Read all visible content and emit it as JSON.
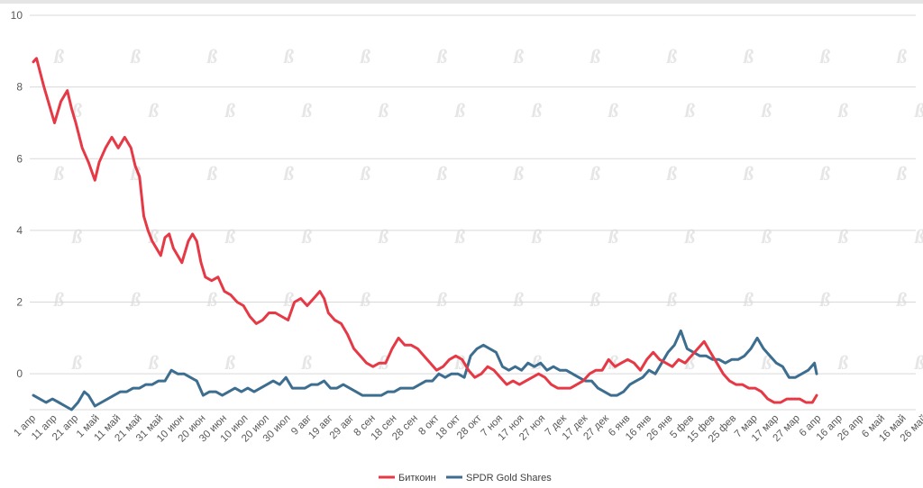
{
  "chart_data": {
    "type": "line",
    "title": "",
    "xlabel": "",
    "ylabel": "",
    "ylim": [
      -1,
      10
    ],
    "yticks": [
      0,
      2,
      4,
      6,
      8,
      10
    ],
    "grid": true,
    "legend_position": "bottom",
    "x_tick_labels": [
      "1 апр",
      "11 апр",
      "21 апр",
      "1 май",
      "11 май",
      "21 май",
      "31 май",
      "10 июн",
      "20 июн",
      "30 июн",
      "10 июл",
      "20 июл",
      "30 июл",
      "9 авг",
      "19 авг",
      "29 авг",
      "8 сен",
      "18 сен",
      "28 сен",
      "8 окт",
      "18 окт",
      "28 окт",
      "7 ноя",
      "17 ноя",
      "27 ноя",
      "7 дек",
      "17 дек",
      "27 дек",
      "6 янв",
      "16 янв",
      "26 янв",
      "5 фев",
      "15 фев",
      "25 фев",
      "7 мар",
      "17 мар",
      "27 мар",
      "6 апр",
      "16 апр",
      "26 апр",
      "6 май",
      "16 май",
      "26 май"
    ],
    "series": [
      {
        "name": "Биткоин",
        "color": "#e63946",
        "points": [
          [
            0,
            8.7
          ],
          [
            0.15,
            8.8
          ],
          [
            0.5,
            8.0
          ],
          [
            0.8,
            7.4
          ],
          [
            1.0,
            7.0
          ],
          [
            1.3,
            7.6
          ],
          [
            1.6,
            7.9
          ],
          [
            1.8,
            7.4
          ],
          [
            2.0,
            7.0
          ],
          [
            2.3,
            6.3
          ],
          [
            2.6,
            5.9
          ],
          [
            2.9,
            5.4
          ],
          [
            3.1,
            5.9
          ],
          [
            3.4,
            6.3
          ],
          [
            3.7,
            6.6
          ],
          [
            4.0,
            6.3
          ],
          [
            4.3,
            6.6
          ],
          [
            4.6,
            6.3
          ],
          [
            4.8,
            5.8
          ],
          [
            5.0,
            5.5
          ],
          [
            5.2,
            4.4
          ],
          [
            5.4,
            4.0
          ],
          [
            5.6,
            3.7
          ],
          [
            5.8,
            3.5
          ],
          [
            6.0,
            3.3
          ],
          [
            6.2,
            3.8
          ],
          [
            6.4,
            3.9
          ],
          [
            6.6,
            3.5
          ],
          [
            6.8,
            3.3
          ],
          [
            7.0,
            3.1
          ],
          [
            7.3,
            3.7
          ],
          [
            7.5,
            3.9
          ],
          [
            7.7,
            3.7
          ],
          [
            7.9,
            3.1
          ],
          [
            8.1,
            2.7
          ],
          [
            8.4,
            2.6
          ],
          [
            8.7,
            2.7
          ],
          [
            9.0,
            2.3
          ],
          [
            9.3,
            2.2
          ],
          [
            9.6,
            2.0
          ],
          [
            9.9,
            1.9
          ],
          [
            10.2,
            1.6
          ],
          [
            10.5,
            1.4
          ],
          [
            10.8,
            1.5
          ],
          [
            11.1,
            1.7
          ],
          [
            11.4,
            1.7
          ],
          [
            11.7,
            1.6
          ],
          [
            12.0,
            1.5
          ],
          [
            12.3,
            2.0
          ],
          [
            12.6,
            2.1
          ],
          [
            12.9,
            1.9
          ],
          [
            13.2,
            2.1
          ],
          [
            13.5,
            2.3
          ],
          [
            13.7,
            2.1
          ],
          [
            13.9,
            1.7
          ],
          [
            14.2,
            1.5
          ],
          [
            14.5,
            1.4
          ],
          [
            14.8,
            1.1
          ],
          [
            15.1,
            0.7
          ],
          [
            15.4,
            0.5
          ],
          [
            15.7,
            0.3
          ],
          [
            16.0,
            0.2
          ],
          [
            16.3,
            0.3
          ],
          [
            16.6,
            0.3
          ],
          [
            16.9,
            0.7
          ],
          [
            17.2,
            1.0
          ],
          [
            17.5,
            0.8
          ],
          [
            17.8,
            0.8
          ],
          [
            18.1,
            0.7
          ],
          [
            18.4,
            0.5
          ],
          [
            18.7,
            0.3
          ],
          [
            19.0,
            0.1
          ],
          [
            19.3,
            0.2
          ],
          [
            19.6,
            0.4
          ],
          [
            19.9,
            0.5
          ],
          [
            20.2,
            0.4
          ],
          [
            20.5,
            0.1
          ],
          [
            20.8,
            -0.1
          ],
          [
            21.1,
            0.0
          ],
          [
            21.4,
            0.2
          ],
          [
            21.7,
            0.1
          ],
          [
            22.0,
            -0.1
          ],
          [
            22.3,
            -0.3
          ],
          [
            22.6,
            -0.2
          ],
          [
            22.9,
            -0.3
          ],
          [
            23.2,
            -0.2
          ],
          [
            23.5,
            -0.1
          ],
          [
            23.8,
            0.0
          ],
          [
            24.1,
            -0.1
          ],
          [
            24.4,
            -0.3
          ],
          [
            24.7,
            -0.4
          ],
          [
            25.0,
            -0.4
          ],
          [
            25.3,
            -0.4
          ],
          [
            25.6,
            -0.3
          ],
          [
            25.9,
            -0.2
          ],
          [
            26.2,
            0.0
          ],
          [
            26.5,
            0.1
          ],
          [
            26.8,
            0.1
          ],
          [
            27.1,
            0.4
          ],
          [
            27.4,
            0.2
          ],
          [
            27.7,
            0.3
          ],
          [
            28.0,
            0.4
          ],
          [
            28.3,
            0.3
          ],
          [
            28.6,
            0.1
          ],
          [
            28.9,
            0.4
          ],
          [
            29.2,
            0.6
          ],
          [
            29.5,
            0.4
          ],
          [
            29.8,
            0.3
          ],
          [
            30.1,
            0.2
          ],
          [
            30.4,
            0.4
          ],
          [
            30.7,
            0.3
          ],
          [
            31.0,
            0.5
          ],
          [
            31.3,
            0.7
          ],
          [
            31.6,
            0.9
          ],
          [
            31.9,
            0.6
          ],
          [
            32.2,
            0.3
          ],
          [
            32.5,
            0.0
          ],
          [
            32.8,
            -0.2
          ],
          [
            33.1,
            -0.3
          ],
          [
            33.4,
            -0.3
          ],
          [
            33.7,
            -0.4
          ],
          [
            34.0,
            -0.4
          ],
          [
            34.3,
            -0.5
          ],
          [
            34.6,
            -0.7
          ],
          [
            34.9,
            -0.8
          ],
          [
            35.2,
            -0.8
          ],
          [
            35.5,
            -0.7
          ],
          [
            35.8,
            -0.7
          ],
          [
            36.1,
            -0.7
          ],
          [
            36.4,
            -0.8
          ],
          [
            36.7,
            -0.8
          ],
          [
            36.9,
            -0.6
          ]
        ]
      },
      {
        "name": "SPDR Gold Shares",
        "color": "#3d6d8f",
        "points": [
          [
            0,
            -0.6
          ],
          [
            0.3,
            -0.7
          ],
          [
            0.6,
            -0.8
          ],
          [
            0.9,
            -0.7
          ],
          [
            1.2,
            -0.8
          ],
          [
            1.5,
            -0.9
          ],
          [
            1.8,
            -1.0
          ],
          [
            2.1,
            -0.8
          ],
          [
            2.4,
            -0.5
          ],
          [
            2.6,
            -0.6
          ],
          [
            2.9,
            -0.9
          ],
          [
            3.2,
            -0.8
          ],
          [
            3.5,
            -0.7
          ],
          [
            3.8,
            -0.6
          ],
          [
            4.1,
            -0.5
          ],
          [
            4.4,
            -0.5
          ],
          [
            4.7,
            -0.4
          ],
          [
            5.0,
            -0.4
          ],
          [
            5.3,
            -0.3
          ],
          [
            5.6,
            -0.3
          ],
          [
            5.9,
            -0.2
          ],
          [
            6.2,
            -0.2
          ],
          [
            6.5,
            0.1
          ],
          [
            6.8,
            0.0
          ],
          [
            7.1,
            0.0
          ],
          [
            7.4,
            -0.1
          ],
          [
            7.7,
            -0.2
          ],
          [
            8.0,
            -0.6
          ],
          [
            8.3,
            -0.5
          ],
          [
            8.6,
            -0.5
          ],
          [
            8.9,
            -0.6
          ],
          [
            9.2,
            -0.5
          ],
          [
            9.5,
            -0.4
          ],
          [
            9.8,
            -0.5
          ],
          [
            10.1,
            -0.4
          ],
          [
            10.4,
            -0.5
          ],
          [
            10.7,
            -0.4
          ],
          [
            11.0,
            -0.3
          ],
          [
            11.3,
            -0.2
          ],
          [
            11.6,
            -0.3
          ],
          [
            11.9,
            -0.1
          ],
          [
            12.2,
            -0.4
          ],
          [
            12.5,
            -0.4
          ],
          [
            12.8,
            -0.4
          ],
          [
            13.1,
            -0.3
          ],
          [
            13.4,
            -0.3
          ],
          [
            13.7,
            -0.2
          ],
          [
            14.0,
            -0.4
          ],
          [
            14.3,
            -0.4
          ],
          [
            14.6,
            -0.3
          ],
          [
            14.9,
            -0.4
          ],
          [
            15.2,
            -0.5
          ],
          [
            15.5,
            -0.6
          ],
          [
            15.8,
            -0.6
          ],
          [
            16.1,
            -0.6
          ],
          [
            16.4,
            -0.6
          ],
          [
            16.7,
            -0.5
          ],
          [
            17.0,
            -0.5
          ],
          [
            17.3,
            -0.4
          ],
          [
            17.6,
            -0.4
          ],
          [
            17.9,
            -0.4
          ],
          [
            18.2,
            -0.3
          ],
          [
            18.5,
            -0.2
          ],
          [
            18.8,
            -0.2
          ],
          [
            19.1,
            0.0
          ],
          [
            19.4,
            -0.1
          ],
          [
            19.7,
            0.0
          ],
          [
            20.0,
            0.0
          ],
          [
            20.3,
            -0.1
          ],
          [
            20.6,
            0.5
          ],
          [
            20.9,
            0.7
          ],
          [
            21.2,
            0.8
          ],
          [
            21.5,
            0.7
          ],
          [
            21.8,
            0.6
          ],
          [
            22.1,
            0.2
          ],
          [
            22.4,
            0.1
          ],
          [
            22.7,
            0.2
          ],
          [
            23.0,
            0.1
          ],
          [
            23.3,
            0.3
          ],
          [
            23.6,
            0.2
          ],
          [
            23.9,
            0.3
          ],
          [
            24.2,
            0.1
          ],
          [
            24.5,
            0.2
          ],
          [
            24.8,
            0.1
          ],
          [
            25.1,
            0.1
          ],
          [
            25.4,
            0.0
          ],
          [
            25.7,
            -0.1
          ],
          [
            26.0,
            -0.2
          ],
          [
            26.3,
            -0.2
          ],
          [
            26.6,
            -0.4
          ],
          [
            26.9,
            -0.5
          ],
          [
            27.2,
            -0.6
          ],
          [
            27.5,
            -0.6
          ],
          [
            27.8,
            -0.5
          ],
          [
            28.1,
            -0.3
          ],
          [
            28.4,
            -0.2
          ],
          [
            28.7,
            -0.1
          ],
          [
            29.0,
            0.1
          ],
          [
            29.3,
            0.0
          ],
          [
            29.6,
            0.3
          ],
          [
            29.9,
            0.6
          ],
          [
            30.2,
            0.8
          ],
          [
            30.5,
            1.2
          ],
          [
            30.8,
            0.7
          ],
          [
            31.1,
            0.6
          ],
          [
            31.4,
            0.5
          ],
          [
            31.7,
            0.5
          ],
          [
            32.0,
            0.4
          ],
          [
            32.3,
            0.4
          ],
          [
            32.6,
            0.3
          ],
          [
            32.9,
            0.4
          ],
          [
            33.2,
            0.4
          ],
          [
            33.5,
            0.5
          ],
          [
            33.8,
            0.7
          ],
          [
            34.1,
            1.0
          ],
          [
            34.4,
            0.7
          ],
          [
            34.7,
            0.5
          ],
          [
            35.0,
            0.3
          ],
          [
            35.3,
            0.2
          ],
          [
            35.6,
            -0.1
          ],
          [
            35.9,
            -0.1
          ],
          [
            36.2,
            0.0
          ],
          [
            36.5,
            0.1
          ],
          [
            36.8,
            0.3
          ],
          [
            36.9,
            0.0
          ]
        ]
      }
    ]
  }
}
